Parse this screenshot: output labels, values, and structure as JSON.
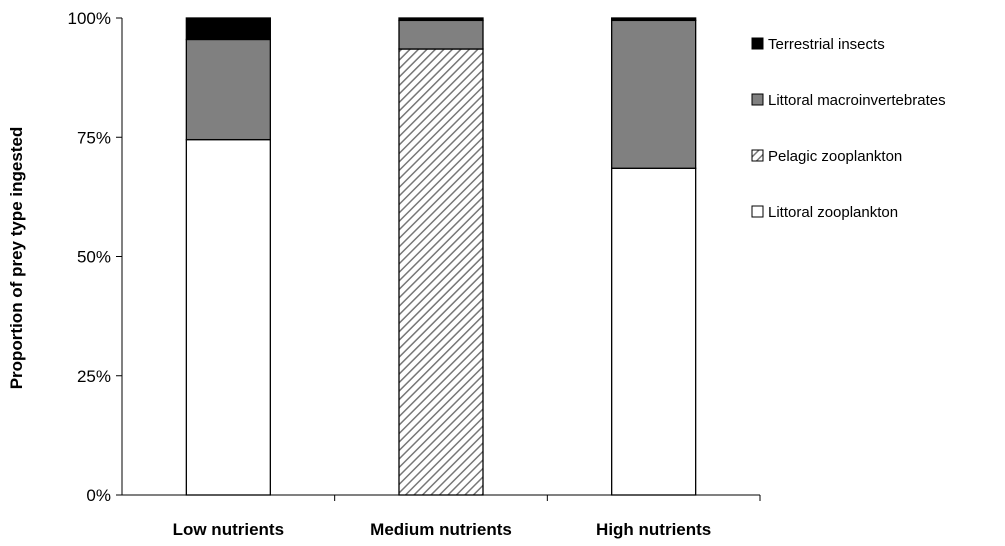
{
  "chart_data": {
    "type": "bar",
    "stacked": true,
    "percent": true,
    "categories": [
      "Low nutrients",
      "Medium nutrients",
      "High nutrients"
    ],
    "series": [
      {
        "name": "Littoral zooplankton",
        "values": [
          74.5,
          0,
          68.5
        ],
        "color": "#ffffff",
        "pattern": "none"
      },
      {
        "name": "Pelagic zooplankton",
        "values": [
          0,
          93.5,
          0
        ],
        "color": "#ffffff",
        "pattern": "hatch"
      },
      {
        "name": "Littoral macroinvertebrates",
        "values": [
          21,
          6,
          31
        ],
        "color": "#808080",
        "pattern": "none"
      },
      {
        "name": "Terrestrial insects",
        "values": [
          4.5,
          0.5,
          0.5
        ],
        "color": "#000000",
        "pattern": "none"
      }
    ],
    "ylabel": "Proportion of prey type ingested",
    "yticks": [
      "0%",
      "25%",
      "50%",
      "75%",
      "100%"
    ],
    "ylim": [
      0,
      100
    ],
    "legend": {
      "position": "right",
      "order": [
        "Terrestrial insects",
        "Littoral macroinvertebrates",
        "Pelagic zooplankton",
        "Littoral zooplankton"
      ]
    },
    "grid": false
  }
}
